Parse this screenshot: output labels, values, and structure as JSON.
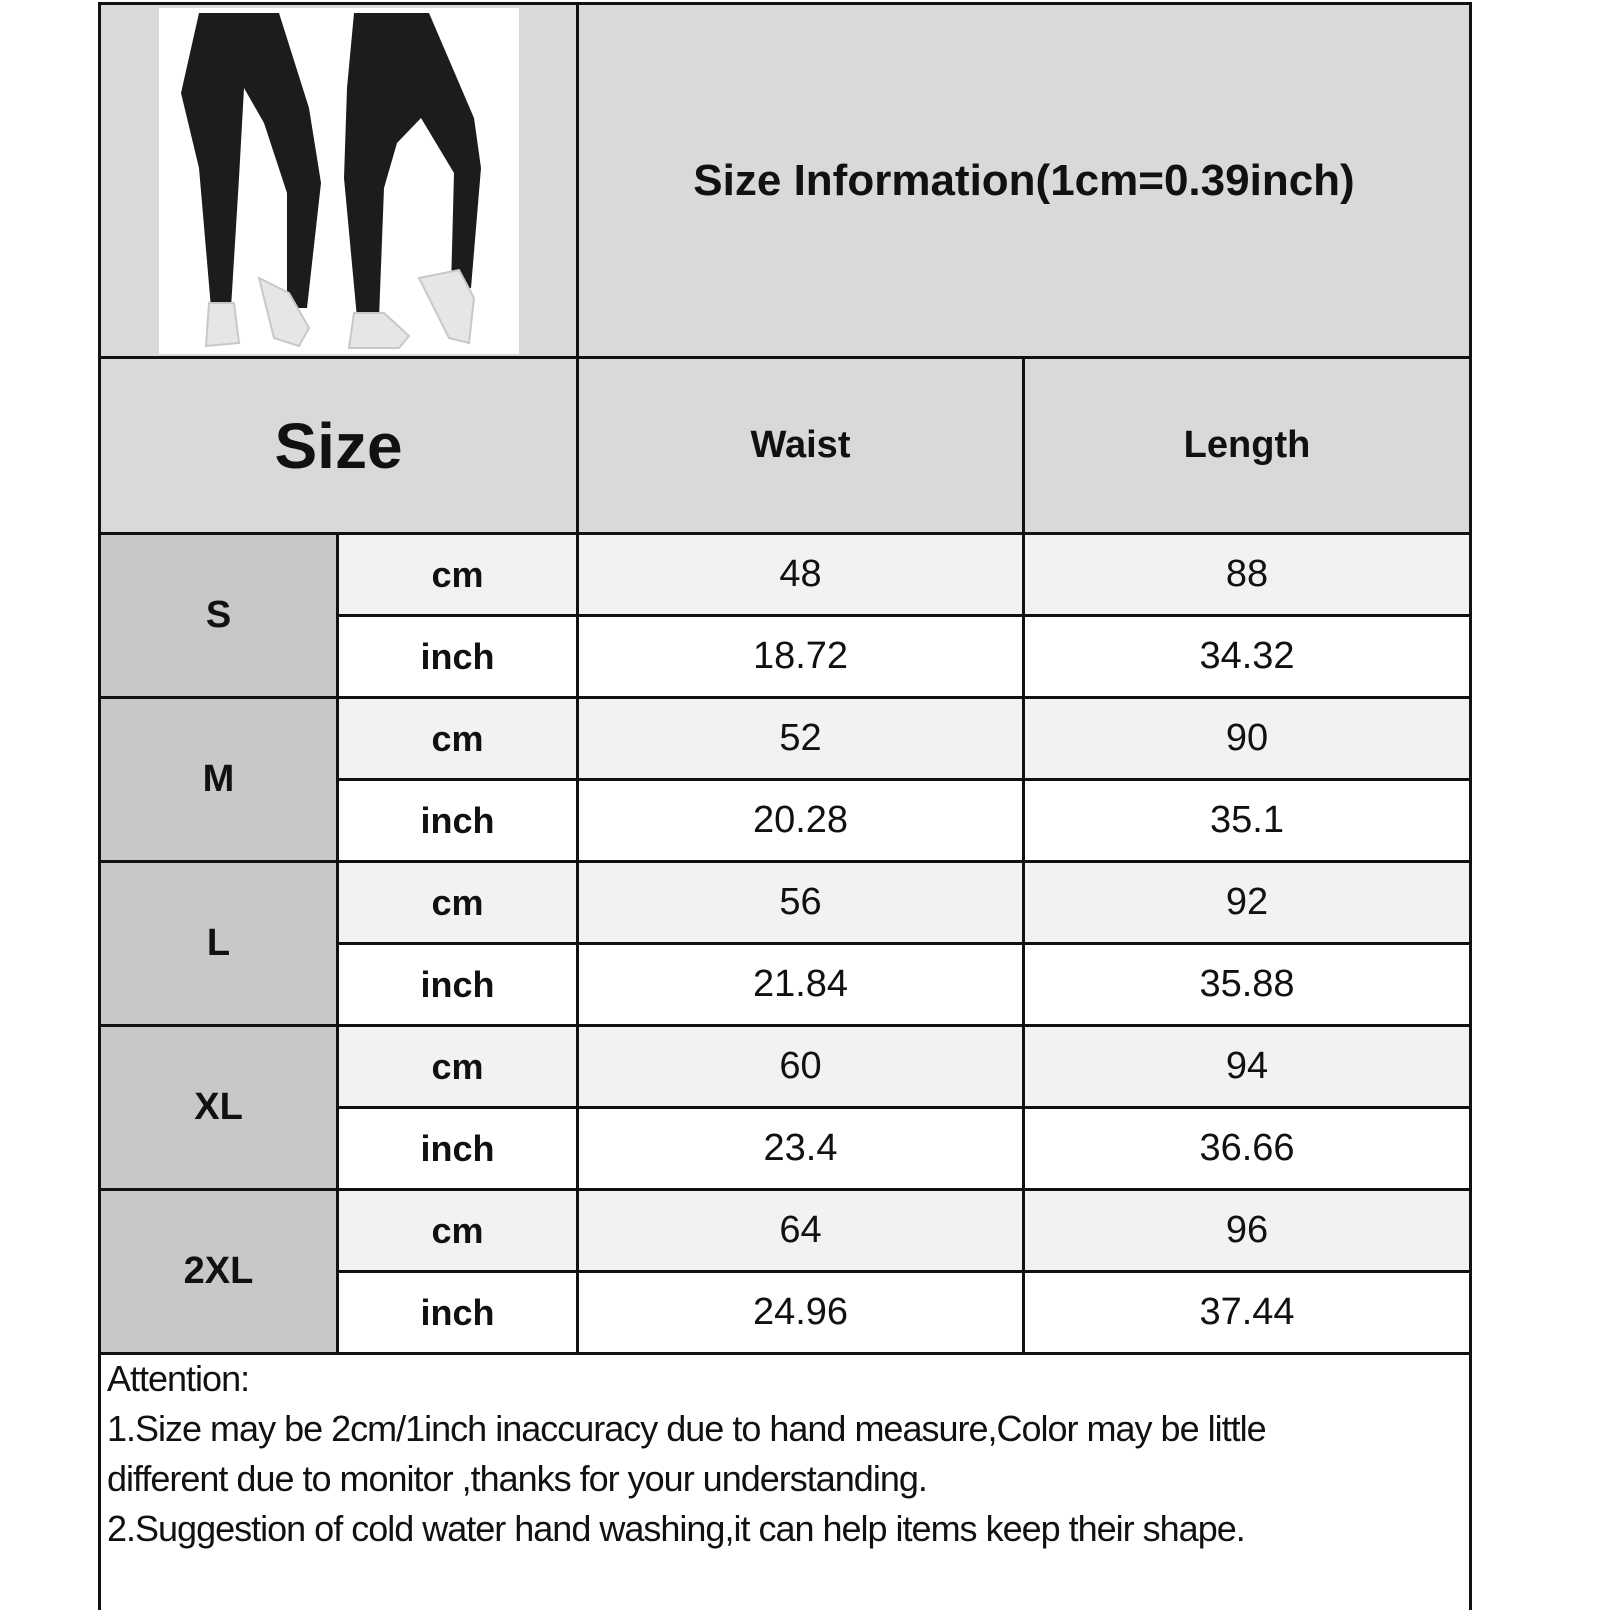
{
  "title": "Size Information(1cm=0.39inch)",
  "headers": {
    "size": "Size",
    "waist": "Waist",
    "length": "Length"
  },
  "product_image": "black high-waist leggings, front and back view",
  "rows": [
    {
      "size": "S",
      "cm": {
        "unit": "cm",
        "waist": "48",
        "length": "88"
      },
      "inch": {
        "unit": "inch",
        "waist": "18.72",
        "length": "34.32"
      }
    },
    {
      "size": "M",
      "cm": {
        "unit": "cm",
        "waist": "52",
        "length": "90"
      },
      "inch": {
        "unit": "inch",
        "waist": "20.28",
        "length": "35.1"
      }
    },
    {
      "size": "L",
      "cm": {
        "unit": "cm",
        "waist": "56",
        "length": "92"
      },
      "inch": {
        "unit": "inch",
        "waist": "21.84",
        "length": "35.88"
      }
    },
    {
      "size": "XL",
      "cm": {
        "unit": "cm",
        "waist": "60",
        "length": "94"
      },
      "inch": {
        "unit": "inch",
        "waist": "23.4",
        "length": "36.66"
      }
    },
    {
      "size": "2XL",
      "cm": {
        "unit": "cm",
        "waist": "64",
        "length": "96"
      },
      "inch": {
        "unit": "inch",
        "waist": "24.96",
        "length": "37.44"
      }
    }
  ],
  "attention": {
    "heading": "Attention:",
    "line1": "1.Size may be 2cm/1inch inaccuracy due to hand measure,Color may be little",
    "line1b": "different due to monitor ,thanks for your understanding.",
    "line2": "2.Suggestion of cold water hand washing,it can help items keep their shape."
  },
  "colors": {
    "header_gray": "#d9d9d9",
    "size_gray": "#c9c7c8",
    "cm_row": "#f2f2f2",
    "border": "#111111"
  }
}
